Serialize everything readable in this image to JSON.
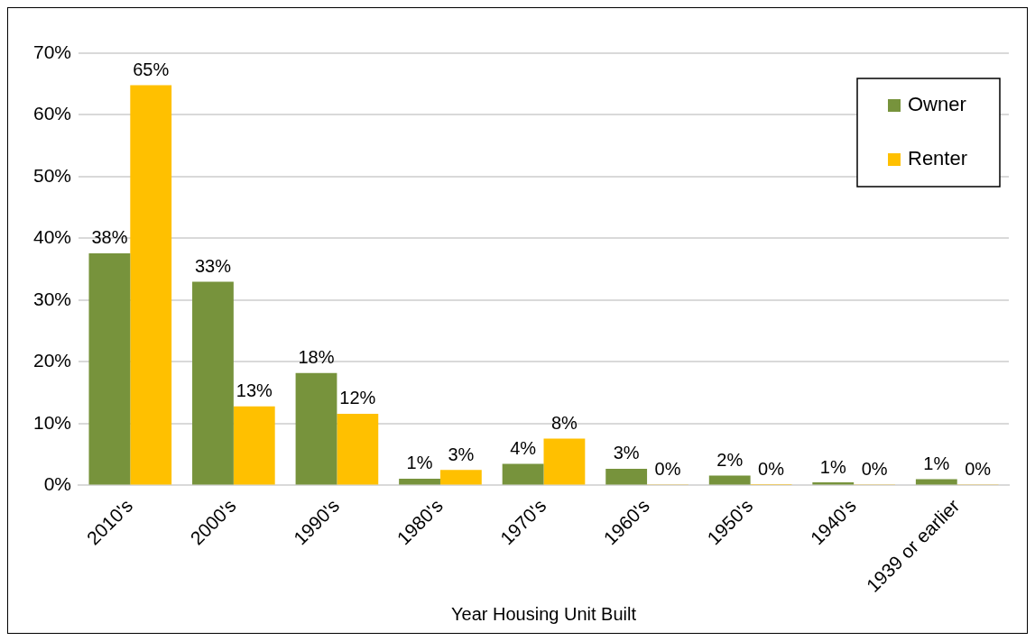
{
  "chart_data": {
    "type": "bar",
    "xlabel": "Year Housing Unit Built",
    "categories": [
      "2010's",
      "2000's",
      "1990's",
      "1980's",
      "1970's",
      "1960's",
      "1950's",
      "1940's",
      "1939 or earlier"
    ],
    "series": [
      {
        "name": "Owner",
        "color": "#77933c",
        "values": [
          37.6,
          33.0,
          18.2,
          1.1,
          3.5,
          2.7,
          1.6,
          0.5,
          1.0
        ],
        "value_labels": [
          "38%",
          "33%",
          "18%",
          "1%",
          "4%",
          "3%",
          "2%",
          "1%",
          "1%"
        ]
      },
      {
        "name": "Renter",
        "color": "#ffc000",
        "values": [
          64.8,
          12.8,
          11.6,
          2.5,
          7.6,
          0.1,
          0.2,
          0.1,
          0.1
        ],
        "value_labels": [
          "65%",
          "13%",
          "12%",
          "3%",
          "8%",
          "0%",
          "0%",
          "0%",
          "0%"
        ]
      }
    ],
    "ylim": [
      0,
      70
    ],
    "yticks": [
      {
        "value": 0,
        "label": "0%"
      },
      {
        "value": 10,
        "label": "10%"
      },
      {
        "value": 20,
        "label": "20%"
      },
      {
        "value": 30,
        "label": "30%"
      },
      {
        "value": 40,
        "label": "40%"
      },
      {
        "value": 50,
        "label": "50%"
      },
      {
        "value": 60,
        "label": "60%"
      },
      {
        "value": 70,
        "label": "70%"
      }
    ],
    "grid": "y",
    "legend": "top right"
  }
}
